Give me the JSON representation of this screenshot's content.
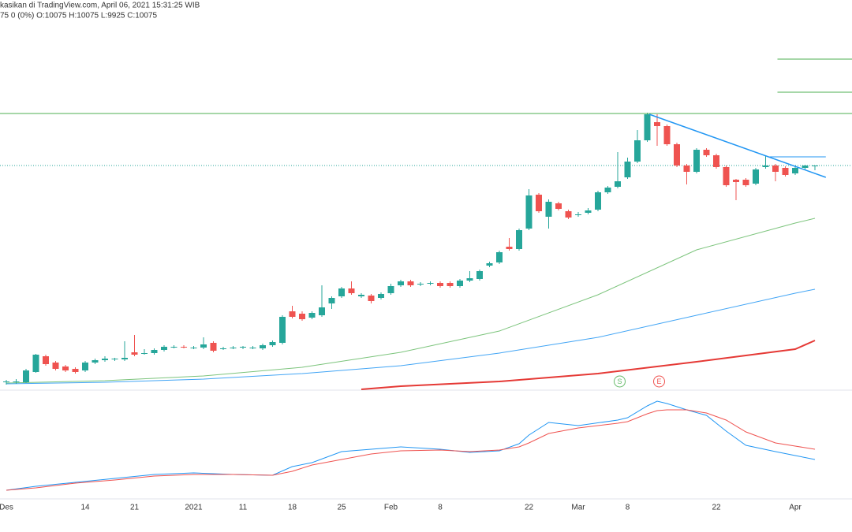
{
  "chart_data": {
    "type": "candlestick",
    "header": {
      "line1": "kasikan di TradingView.com, April 06, 2021 15:31:25 WIB",
      "line2": "75 0 (0%) O:10075 H:10075 L:9925 C:10075"
    },
    "up_color": "#26a69a",
    "down_color": "#ef5350",
    "xlim": [
      -0.64,
      85.76
    ],
    "ylim": [
      2950,
      14575
    ],
    "xticks": [
      {
        "value": 0,
        "label": "Des"
      },
      {
        "value": 8,
        "label": "14"
      },
      {
        "value": 13,
        "label": "21"
      },
      {
        "value": 19,
        "label": "2021"
      },
      {
        "value": 24,
        "label": "11"
      },
      {
        "value": 29,
        "label": "18"
      },
      {
        "value": 34,
        "label": "25"
      },
      {
        "value": 39,
        "label": "Feb"
      },
      {
        "value": 44,
        "label": "8"
      },
      {
        "value": 53,
        "label": "22"
      },
      {
        "value": 58,
        "label": "Mar"
      },
      {
        "value": 63,
        "label": "8"
      },
      {
        "value": 72,
        "label": "22"
      },
      {
        "value": 80,
        "label": "Apr"
      }
    ],
    "ohlc": [
      [
        3200,
        3275,
        3125,
        3225
      ],
      [
        3225,
        3300,
        3150,
        3225
      ],
      [
        3200,
        3625,
        3175,
        3575
      ],
      [
        3525,
        4100,
        3500,
        4075
      ],
      [
        4025,
        4075,
        3725,
        3775
      ],
      [
        3825,
        3875,
        3575,
        3625
      ],
      [
        3700,
        3750,
        3525,
        3575
      ],
      [
        3625,
        3675,
        3475,
        3525
      ],
      [
        3575,
        3875,
        3525,
        3825
      ],
      [
        3825,
        3950,
        3775,
        3900
      ],
      [
        3900,
        4025,
        3850,
        3950
      ],
      [
        3925,
        3975,
        3875,
        3950
      ],
      [
        3925,
        4500,
        3875,
        3975
      ],
      [
        4150,
        4700,
        4025,
        4075
      ],
      [
        4125,
        4250,
        4075,
        4125
      ],
      [
        4125,
        4275,
        4075,
        4225
      ],
      [
        4225,
        4375,
        4175,
        4325
      ],
      [
        4325,
        4375,
        4275,
        4325
      ],
      [
        4325,
        4375,
        4275,
        4300
      ],
      [
        4300,
        4350,
        4250,
        4300
      ],
      [
        4300,
        4625,
        4250,
        4400
      ],
      [
        4450,
        4500,
        4150,
        4200
      ],
      [
        4275,
        4325,
        4225,
        4275
      ],
      [
        4300,
        4350,
        4250,
        4300
      ],
      [
        4300,
        4350,
        4250,
        4325
      ],
      [
        4300,
        4350,
        4250,
        4300
      ],
      [
        4275,
        4425,
        4225,
        4375
      ],
      [
        4375,
        4525,
        4325,
        4475
      ],
      [
        4450,
        5325,
        4400,
        5275
      ],
      [
        5450,
        5625,
        5225,
        5275
      ],
      [
        5375,
        5450,
        5150,
        5200
      ],
      [
        5250,
        5450,
        5200,
        5400
      ],
      [
        5325,
        6275,
        5275,
        5575
      ],
      [
        5700,
        5925,
        5525,
        5875
      ],
      [
        5925,
        6225,
        5875,
        6175
      ],
      [
        6175,
        6400,
        5975,
        6025
      ],
      [
        5925,
        6025,
        5875,
        5975
      ],
      [
        5950,
        6000,
        5700,
        5775
      ],
      [
        5875,
        6050,
        5825,
        6000
      ],
      [
        6025,
        6325,
        5975,
        6250
      ],
      [
        6275,
        6450,
        6225,
        6400
      ],
      [
        6400,
        6450,
        6225,
        6275
      ],
      [
        6300,
        6375,
        6250,
        6325
      ],
      [
        6325,
        6400,
        6275,
        6350
      ],
      [
        6350,
        6400,
        6200,
        6250
      ],
      [
        6350,
        6400,
        6200,
        6250
      ],
      [
        6250,
        6475,
        6200,
        6425
      ],
      [
        6425,
        6725,
        6375,
        6500
      ],
      [
        6475,
        6775,
        6425,
        6725
      ],
      [
        6900,
        7025,
        6850,
        6975
      ],
      [
        7000,
        7375,
        6950,
        7325
      ],
      [
        7500,
        7775,
        7375,
        7425
      ],
      [
        7425,
        8075,
        7375,
        8025
      ],
      [
        8075,
        9325,
        8025,
        9125
      ],
      [
        9150,
        9200,
        8575,
        8625
      ],
      [
        8450,
        9000,
        8075,
        8925
      ],
      [
        8875,
        8925,
        8650,
        8700
      ],
      [
        8625,
        8675,
        8375,
        8425
      ],
      [
        8525,
        8600,
        8450,
        8525
      ],
      [
        8575,
        8725,
        8525,
        8650
      ],
      [
        8675,
        9275,
        8625,
        9225
      ],
      [
        9225,
        9425,
        9175,
        9375
      ],
      [
        9400,
        10500,
        9350,
        9575
      ],
      [
        9700,
        10325,
        9650,
        10200
      ],
      [
        10200,
        11200,
        10150,
        10875
      ],
      [
        10875,
        11750,
        10825,
        11700
      ],
      [
        11450,
        11700,
        10700,
        11325
      ],
      [
        11325,
        11375,
        10700,
        10750
      ],
      [
        10750,
        10800,
        10025,
        10075
      ],
      [
        10075,
        10125,
        9475,
        9875
      ],
      [
        9875,
        10625,
        9825,
        10575
      ],
      [
        10575,
        10625,
        10350,
        10400
      ],
      [
        10400,
        10450,
        9975,
        10025
      ],
      [
        10025,
        10075,
        9400,
        9450
      ],
      [
        9625,
        9650,
        8975,
        9550
      ],
      [
        9625,
        9675,
        9400,
        9450
      ],
      [
        9500,
        10000,
        9450,
        9950
      ],
      [
        10025,
        10375,
        9975,
        10075
      ],
      [
        10075,
        10125,
        9575,
        9875
      ],
      [
        10000,
        10050,
        9725,
        9775
      ],
      [
        9825,
        10050,
        9775,
        10000
      ],
      [
        10000,
        10100,
        9950,
        10075
      ],
      [
        10075,
        10075,
        9925,
        10075
      ]
    ],
    "moving_averages": [
      {
        "color": "#7cc47c",
        "x": [
          0,
          10,
          20,
          30,
          40,
          50,
          60,
          70,
          80,
          82
        ],
        "values": [
          3175,
          3250,
          3400,
          3675,
          4150,
          4825,
          5975,
          7400,
          8250,
          8400
        ]
      },
      {
        "color": "#42a5f5",
        "x": [
          0,
          10,
          20,
          30,
          40,
          50,
          60,
          70,
          80,
          82
        ],
        "values": [
          3150,
          3200,
          3300,
          3475,
          3725,
          4125,
          4625,
          5325,
          6025,
          6150
        ]
      },
      {
        "color": "#e53935",
        "x": [
          36,
          40,
          50,
          60,
          70,
          80,
          82
        ],
        "values": [
          2975,
          3075,
          3225,
          3475,
          3850,
          4250,
          4525
        ]
      }
    ],
    "drawings": [
      {
        "color": "#4caf50",
        "x": [
          -1,
          86
        ],
        "values": [
          11725,
          11725
        ]
      },
      {
        "color": "#4caf50",
        "x": [
          78.2,
          86
        ],
        "values": [
          13450,
          13450
        ]
      },
      {
        "color": "#4caf50",
        "x": [
          78.2,
          86
        ],
        "values": [
          12400,
          12400
        ]
      },
      {
        "color": "#2196f3",
        "x": [
          65.2,
          83.1
        ],
        "values": [
          11700,
          9700
        ]
      },
      {
        "color": "#2196f3",
        "x": [
          77.4,
          83.1
        ],
        "values": [
          10350,
          10350
        ]
      }
    ],
    "last_price": 10075,
    "last_price_color": "#26a69a",
    "events": [
      {
        "label": "S",
        "x": 62.2,
        "color": "#66bb6a"
      },
      {
        "label": "E",
        "x": 66.2,
        "color": "#ef5350"
      }
    ],
    "oscillator": {
      "ylim": [
        0,
        145
      ],
      "x": [
        0,
        3,
        7,
        11,
        15,
        19,
        23,
        27,
        29,
        31,
        34,
        37,
        40,
        44,
        47,
        50,
        52,
        53,
        55,
        58,
        62,
        63,
        65,
        66,
        67,
        69,
        71,
        73,
        75,
        78,
        80,
        82
      ],
      "series": [
        {
          "color": "#2196f3",
          "values": [
            18,
            23,
            28,
            33,
            38,
            40,
            38,
            37,
            48,
            53,
            67,
            70,
            73,
            70,
            66,
            68,
            77,
            88,
            104,
            100,
            107,
            110,
            125,
            131,
            128,
            120,
            113,
            93,
            75,
            67,
            62,
            57
          ]
        },
        {
          "color": "#ef5350",
          "values": [
            18,
            21,
            27,
            31,
            36,
            38,
            38,
            37,
            42,
            50,
            57,
            64,
            68,
            69,
            67,
            69,
            73,
            78,
            90,
            97,
            103,
            105,
            115,
            119,
            120,
            120,
            116,
            107,
            92,
            78,
            74,
            70
          ]
        }
      ]
    }
  }
}
